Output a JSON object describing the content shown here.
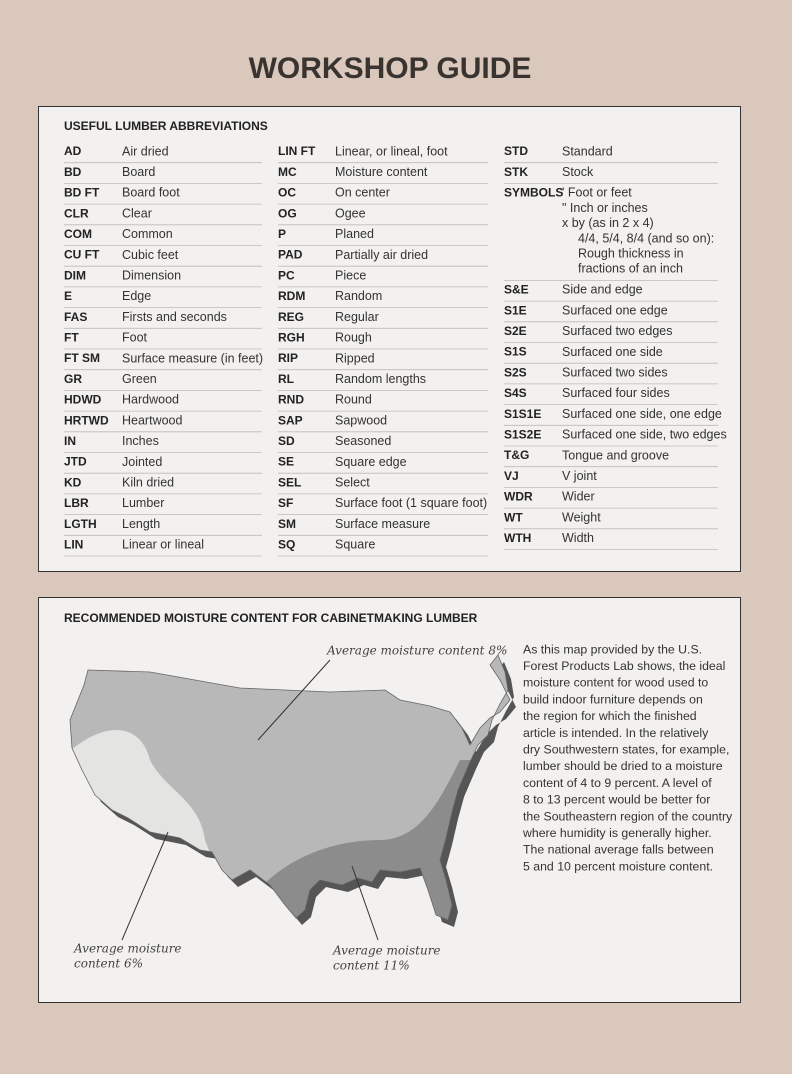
{
  "title": "WORKSHOP GUIDE",
  "abbreviations": {
    "heading": "USEFUL LUMBER ABBREVIATIONS",
    "columns": [
      [
        [
          "AD",
          "Air dried"
        ],
        [
          "BD",
          "Board"
        ],
        [
          "BD FT",
          "Board foot"
        ],
        [
          "CLR",
          "Clear"
        ],
        [
          "COM",
          "Common"
        ],
        [
          "CU FT",
          "Cubic feet"
        ],
        [
          "DIM",
          "Dimension"
        ],
        [
          "E",
          "Edge"
        ],
        [
          "FAS",
          "Firsts and seconds"
        ],
        [
          "FT",
          "Foot"
        ],
        [
          "FT SM",
          "Surface measure (in feet)"
        ],
        [
          "GR",
          "Green"
        ],
        [
          "HDWD",
          "Hardwood"
        ],
        [
          "HRTWD",
          "Heartwood"
        ],
        [
          "IN",
          "Inches"
        ],
        [
          "JTD",
          "Jointed"
        ],
        [
          "KD",
          "Kiln dried"
        ],
        [
          "LBR",
          "Lumber"
        ],
        [
          "LGTH",
          "Length"
        ],
        [
          "LIN",
          "Linear or lineal"
        ]
      ],
      [
        [
          "LIN FT",
          "Linear, or lineal, foot"
        ],
        [
          "MC",
          "Moisture content"
        ],
        [
          "OC",
          "On center"
        ],
        [
          "OG",
          "Ogee"
        ],
        [
          "P",
          "Planed"
        ],
        [
          "PAD",
          "Partially air dried"
        ],
        [
          "PC",
          "Piece"
        ],
        [
          "RDM",
          "Random"
        ],
        [
          "REG",
          "Regular"
        ],
        [
          "RGH",
          "Rough"
        ],
        [
          "RIP",
          "Ripped"
        ],
        [
          "RL",
          "Random lengths"
        ],
        [
          "RND",
          "Round"
        ],
        [
          "SAP",
          "Sapwood"
        ],
        [
          "SD",
          "Seasoned"
        ],
        [
          "SE",
          "Square edge"
        ],
        [
          "SEL",
          "Select"
        ],
        [
          "SF",
          "Surface foot (1 square foot)"
        ],
        [
          "SM",
          "Surface measure"
        ],
        [
          "SQ",
          "Square"
        ]
      ],
      [
        [
          "STD",
          "Standard"
        ],
        [
          "STK",
          "Stock"
        ],
        [
          "SYMBOLS",
          "' Foot or feet",
          "\" Inch or inches",
          "x by (as in 2 x 4)",
          "4/4, 5/4, 8/4 (and so on):",
          "Rough thickness in",
          "fractions of an inch"
        ],
        [
          "S&E",
          "Side and edge"
        ],
        [
          "S1E",
          "Surfaced one edge"
        ],
        [
          "S2E",
          "Surfaced two edges"
        ],
        [
          "S1S",
          "Surfaced one side"
        ],
        [
          "S2S",
          "Surfaced two sides"
        ],
        [
          "S4S",
          "Surfaced four sides"
        ],
        [
          "S1S1E",
          "Surfaced one side, one edge"
        ],
        [
          "S1S2E",
          "Surfaced one side, two edges"
        ],
        [
          "T&G",
          "Tongue and groove"
        ],
        [
          "VJ",
          "V joint"
        ],
        [
          "WDR",
          "Wider"
        ],
        [
          "WT",
          "Weight"
        ],
        [
          "WTH",
          "Width"
        ]
      ]
    ]
  },
  "moisture": {
    "heading": "RECOMMENDED MOISTURE CONTENT FOR CABINETMAKING LUMBER",
    "map_labels": [
      [
        "Average moisture content 8%"
      ],
      [
        "Average moisture",
        "content 6%"
      ],
      [
        "Average moisture",
        "content 11%"
      ]
    ],
    "paragraph": [
      "As this map provided by the U.S.",
      "Forest Products Lab shows, the ideal",
      "moisture content for wood used to",
      "build indoor furniture depends on",
      "the region for which the finished",
      "article is intended. In the relatively",
      "dry Southwestern states, for example,",
      "lumber should be dried to a moisture",
      "content of 4 to 9 percent. A level of",
      "8 to 13 percent would be better for",
      "the Southeastern region of the country",
      "where humidity is generally higher.",
      "The national average falls between",
      "5 and 10 percent moisture content."
    ]
  }
}
